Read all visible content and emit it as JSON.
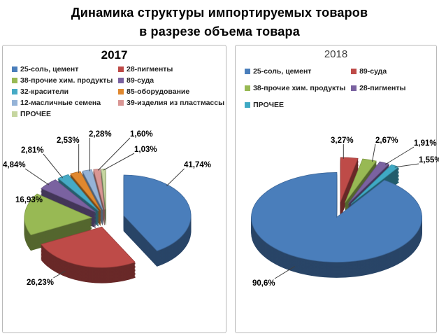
{
  "page": {
    "title_line1": "Динамика структуры импортируемых товаров",
    "title_line2": "в разрезе объема товара"
  },
  "chart_data": [
    {
      "type": "pie",
      "style": "3d-exploded-pie",
      "title": "2017",
      "unit": "percent",
      "legend_position": "top-two-columns",
      "slices": [
        {
          "label": "25-соль, цемент",
          "value": 41.74,
          "pct_label": "41,74%",
          "color": "#4A7EBB"
        },
        {
          "label": "28-пигменты",
          "value": 26.23,
          "pct_label": "26,23%",
          "color": "#BE4B48"
        },
        {
          "label": "38-прочие хим. продукты",
          "value": 16.93,
          "pct_label": "16,93%",
          "color": "#98B954"
        },
        {
          "label": "89-суда",
          "value": 4.84,
          "pct_label": "4,84%",
          "color": "#7A62A0"
        },
        {
          "label": "32-красители",
          "value": 2.81,
          "pct_label": "2,81%",
          "color": "#46AAC5"
        },
        {
          "label": "85-оборудование",
          "value": 2.53,
          "pct_label": "2,53%",
          "color": "#E0882F"
        },
        {
          "label": "12-масличные семена",
          "value": 2.28,
          "pct_label": "2,28%",
          "color": "#95B3D7"
        },
        {
          "label": "39-изделия из пластмассы",
          "value": 1.6,
          "pct_label": "1,60%",
          "color": "#D99694"
        },
        {
          "label": "ПРОЧЕЕ",
          "value": 1.03,
          "pct_label": "1,03%",
          "color": "#C6D6A0"
        }
      ],
      "legend_columns": [
        [
          0,
          2,
          4,
          6,
          8
        ],
        [
          1,
          3,
          5,
          7
        ]
      ],
      "rotation": 0
    },
    {
      "type": "pie",
      "style": "3d-exploded-pie",
      "title": "2018",
      "unit": "percent",
      "legend_position": "top-two-columns",
      "slices": [
        {
          "label": "25-соль, цемент",
          "value": 90.6,
          "pct_label": "90,6%",
          "color": "#4A7EBB"
        },
        {
          "label": "89-суда",
          "value": 3.27,
          "pct_label": "3,27%",
          "color": "#BE4B48"
        },
        {
          "label": "38-прочие хим. продукты",
          "value": 2.67,
          "pct_label": "2,67%",
          "color": "#98B954"
        },
        {
          "label": "28-пигменты",
          "value": 1.91,
          "pct_label": "1,91%",
          "color": "#7A62A0"
        },
        {
          "label": "ПРОЧЕЕ",
          "value": 1.55,
          "pct_label": "1,55%",
          "color": "#3FA9C4"
        }
      ],
      "legend_columns": [
        [
          0,
          2,
          4
        ],
        [
          1,
          3
        ]
      ],
      "rotation": 34
    }
  ]
}
